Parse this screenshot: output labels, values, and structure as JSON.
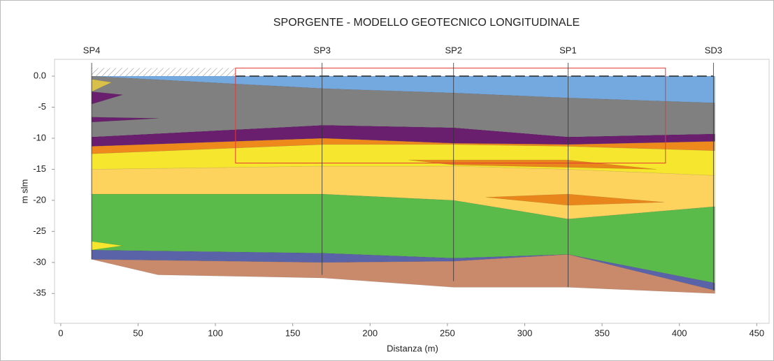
{
  "chart_data": {
    "type": "section",
    "title": "SPORGENTE - MODELLO GEOTECNICO LONGITUDINALE",
    "x_label": "Distanza (m)",
    "y_label": "m slm",
    "xlim": [
      -4,
      458
    ],
    "ylim": [
      -39.8,
      2.7
    ],
    "xticks": [
      0,
      50,
      100,
      150,
      200,
      250,
      300,
      350,
      400,
      450
    ],
    "yticks": [
      {
        "value": 0,
        "label": "0.0"
      },
      -5,
      -10,
      -15,
      -20,
      -25,
      -30,
      -35
    ],
    "series": [
      {
        "color": "#c98a6c",
        "x": [
          20,
          63,
          170,
          254,
          328,
          423,
          423,
          328,
          254,
          170,
          20
        ],
        "y": [
          -29.5,
          -32,
          -32.5,
          -34,
          -34,
          -35,
          -34.5,
          -28.7,
          -29.8,
          -30,
          -29.5
        ]
      },
      {
        "color": "#5a63a8",
        "x": [
          20,
          170,
          254,
          328,
          423,
          423,
          328,
          254,
          170,
          20
        ],
        "y": [
          -28,
          -28.5,
          -29.3,
          -28.7,
          -33.3,
          -34.5,
          -28.7,
          -29.8,
          -30,
          -29.5
        ]
      },
      {
        "color": "#5bbb4a",
        "x": [
          20,
          170,
          254,
          328,
          423,
          423,
          328,
          254,
          170,
          20
        ],
        "y": [
          -19,
          -19,
          -20,
          -23,
          -21,
          -33.3,
          -28.7,
          -29.3,
          -28.5,
          -28
        ]
      },
      {
        "color": "#fdd35e",
        "x": [
          20,
          170,
          254,
          328,
          423,
          423,
          328,
          254,
          170,
          20
        ],
        "y": [
          -15,
          -14.5,
          -14.5,
          -15,
          -16,
          -21,
          -23,
          -20,
          -19,
          -19
        ]
      },
      {
        "color": "#f6e62e",
        "x": [
          20,
          170,
          254,
          328,
          423,
          423,
          328,
          254,
          170,
          20
        ],
        "y": [
          -12.5,
          -11,
          -11,
          -11.3,
          -12,
          -16,
          -15,
          -14.5,
          -14.5,
          -15
        ]
      },
      {
        "color": "#ee8a1c",
        "x": [
          20,
          170,
          254,
          328,
          423,
          423,
          328,
          254,
          170,
          20
        ],
        "y": [
          -11.3,
          -10,
          -10.8,
          -11,
          -10.5,
          -12,
          -11.3,
          -11,
          -11,
          -12.5
        ]
      },
      {
        "color": "#6a1f6e",
        "x": [
          20,
          170,
          254,
          328,
          423,
          423,
          328,
          254,
          170,
          20
        ],
        "y": [
          -9.8,
          -7.9,
          -8.3,
          -9.8,
          -9.3,
          -10.5,
          -11,
          -10.8,
          -10,
          -11.3
        ]
      },
      {
        "color": "#808080",
        "x": [
          20,
          170,
          254,
          328,
          423,
          423,
          328,
          254,
          170,
          20
        ],
        "y": [
          0,
          -2,
          -2.7,
          -3.5,
          -4.3,
          -9.3,
          -9.8,
          -8.3,
          -7.9,
          -9.8
        ]
      },
      {
        "color": "#74a9e0",
        "x": [
          20,
          170,
          254,
          328,
          423,
          423
        ],
        "y": [
          0,
          -2,
          -2.7,
          -3.5,
          -4.3,
          0
        ]
      },
      {
        "color": "#e8861c",
        "x": [
          225,
          328,
          385,
          254
        ],
        "y": [
          -13.5,
          -13.5,
          -15,
          -14.3
        ]
      },
      {
        "color": "#e8861c",
        "x": [
          275,
          328,
          390,
          328
        ],
        "y": [
          -19.5,
          -19,
          -20.3,
          -20.8
        ]
      },
      {
        "color": "#6a1f6e",
        "x": [
          20,
          63,
          20
        ],
        "y": [
          -6.6,
          -6.8,
          -7.4
        ]
      },
      {
        "color": "#6a1f6e",
        "x": [
          20,
          40,
          20
        ],
        "y": [
          -2.5,
          -3,
          -4.5
        ]
      },
      {
        "color": "#f6e62e",
        "x": [
          20,
          40,
          20
        ],
        "y": [
          -26.6,
          -27.3,
          -28
        ]
      },
      {
        "color": "#d9c04a",
        "x": [
          20,
          33,
          20
        ],
        "y": [
          -0.5,
          -1,
          -2.5
        ]
      }
    ],
    "land": {
      "x": [
        20,
        113
      ],
      "y": [
        0,
        1.3
      ]
    },
    "highlight": {
      "color": "#e53935",
      "x": [
        113,
        391
      ],
      "y": [
        -14,
        1.3
      ]
    },
    "boreholes": [
      {
        "label": "SP4",
        "x": 20,
        "bottom": -29.5
      },
      {
        "label": "SP3",
        "x": 169,
        "bottom": -32
      },
      {
        "label": "SP2",
        "x": 254,
        "bottom": -33
      },
      {
        "label": "SP1",
        "x": 328,
        "bottom": -34
      },
      {
        "label": "SD3",
        "x": 422,
        "bottom": -34.5
      }
    ]
  }
}
